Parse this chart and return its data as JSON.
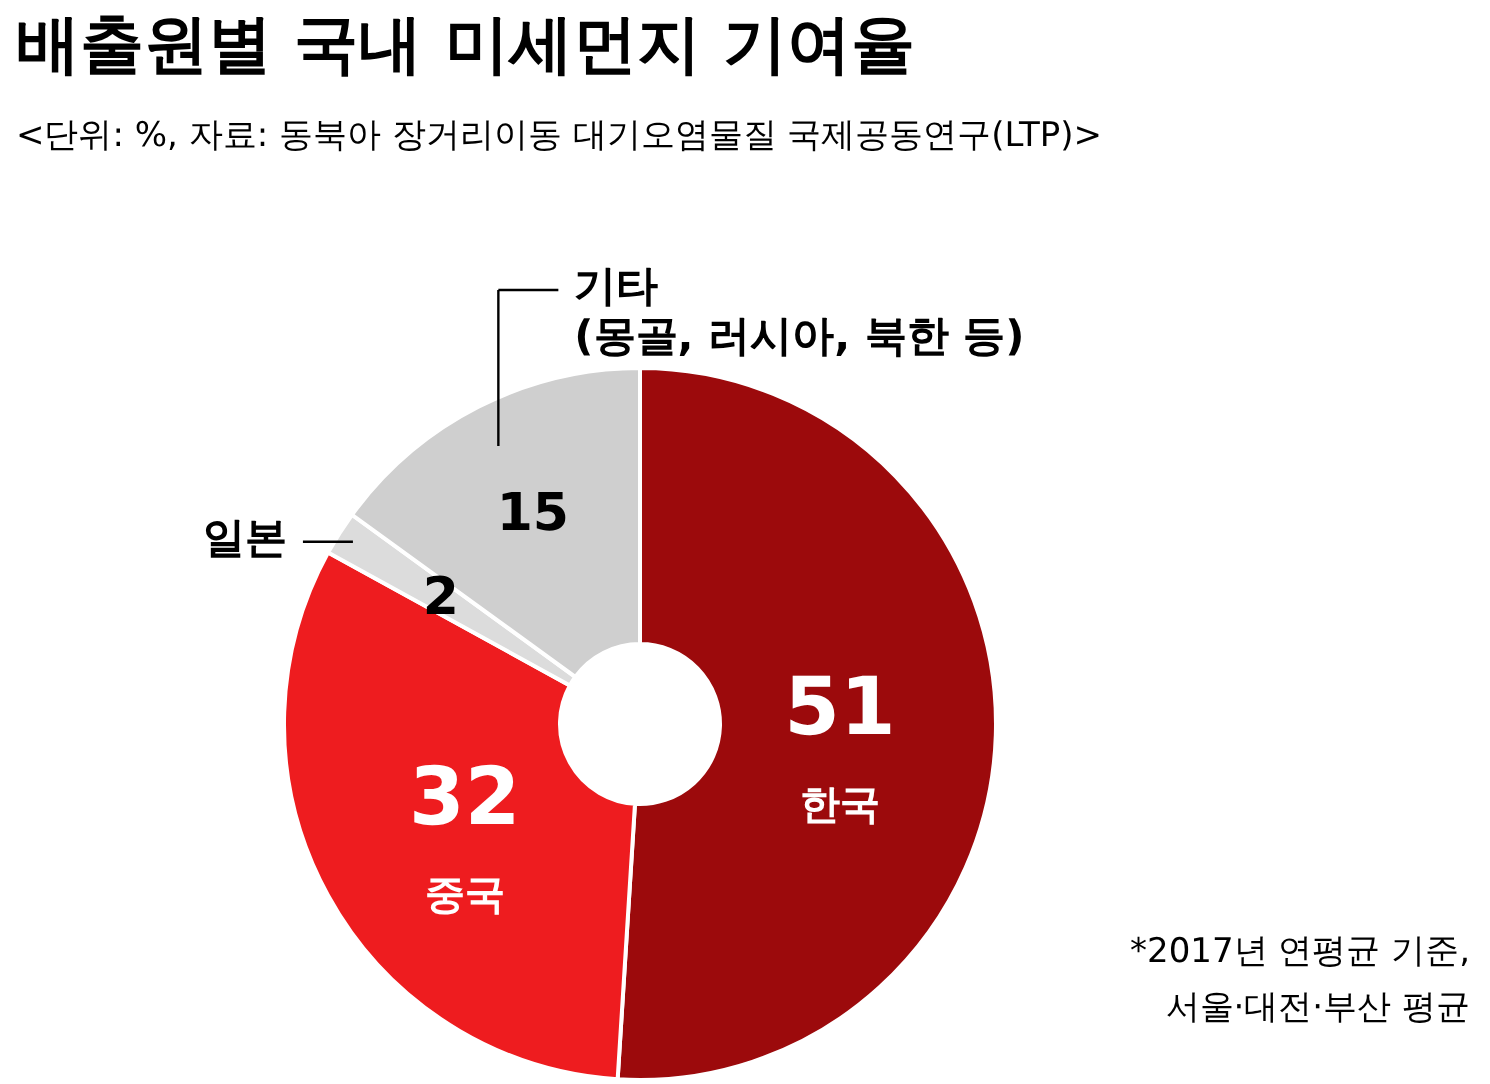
{
  "chart_data": {
    "type": "donut",
    "title": "배출원별 국내 미세먼지 기여율",
    "subtitle": "<단위: %, 자료: 동북아 장거리이동 대기오염물질 국제공동연구(LTP)>",
    "categories": [
      "한국",
      "중국",
      "일본",
      "기타\n(몽골, 러시아, 북한 등)"
    ],
    "values": [
      51,
      32,
      2,
      15
    ],
    "colors": [
      "#9c0a0c",
      "#ee1c1f",
      "#dcdcdc",
      "#cfcfcf"
    ],
    "data_labels": true,
    "annotations": [
      "*2017년 연평균 기준,\n서울·대전·부산 평균"
    ]
  }
}
